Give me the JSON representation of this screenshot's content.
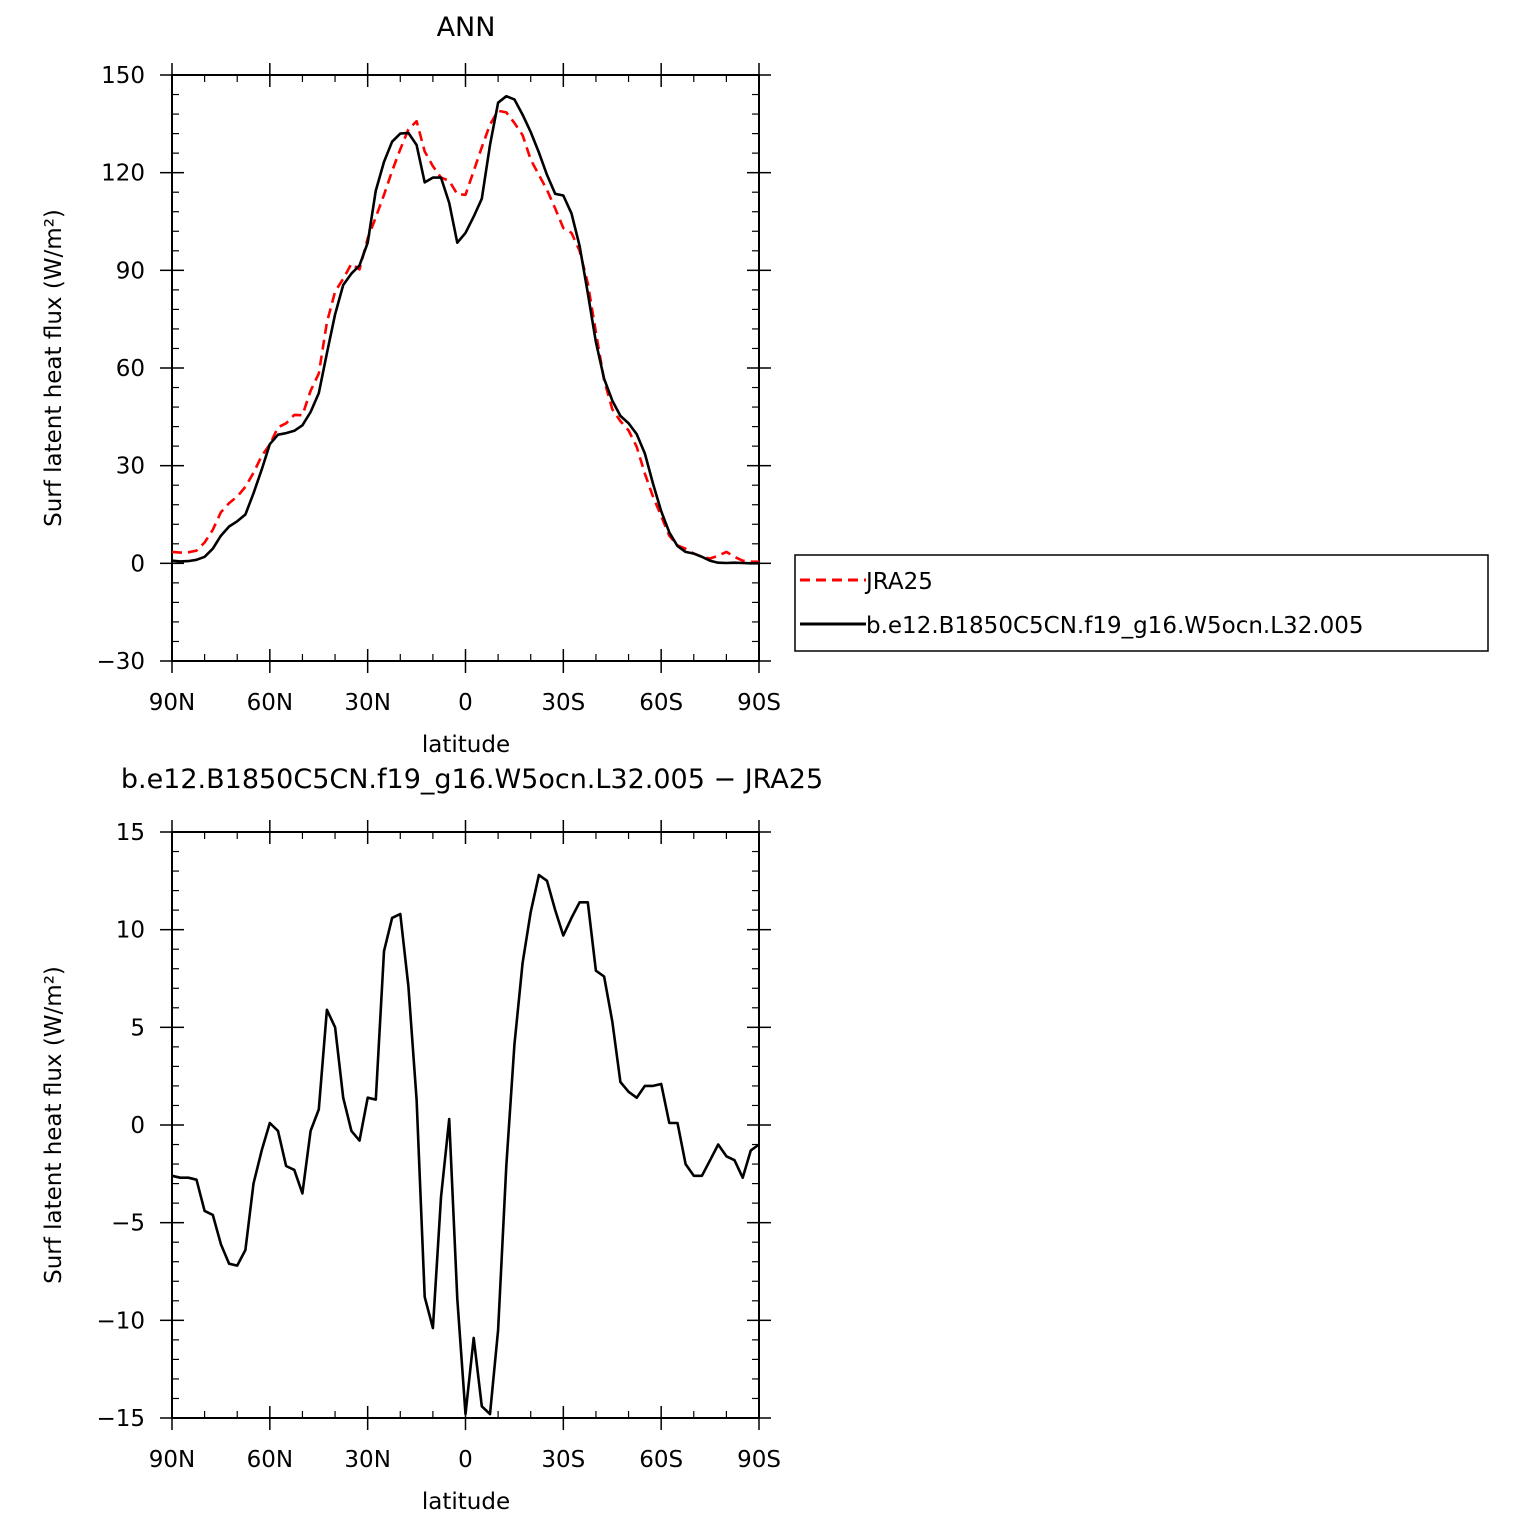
{
  "chart_data": [
    {
      "type": "line",
      "title": "ANN",
      "xlabel": "latitude",
      "ylabel": "Surf latent heat flux (W/m²)",
      "xlim": [
        90,
        -90
      ],
      "ylim": [
        -30,
        150
      ],
      "xtick_values": [
        90,
        60,
        30,
        0,
        -30,
        -60,
        -90
      ],
      "xtick_labels": [
        "90N",
        "60N",
        "30N",
        "0",
        "30S",
        "60S",
        "90S"
      ],
      "ytick_values": [
        -30,
        0,
        30,
        60,
        90,
        120,
        150
      ],
      "ytick_labels": [
        "−30",
        "0",
        "30",
        "60",
        "90",
        "120",
        "150"
      ],
      "legend_position": "right",
      "grid": false,
      "series": [
        {
          "name": "JRA25",
          "color": "#ff0000",
          "style": "dashed",
          "x": [
            90,
            87.5,
            85,
            82.5,
            80,
            77.5,
            75,
            72.5,
            70,
            67.5,
            65,
            62.5,
            60,
            57.5,
            55,
            52.5,
            50,
            47.5,
            45,
            42.5,
            40,
            37.5,
            35,
            32.5,
            30,
            27.5,
            25,
            22.5,
            20,
            17.5,
            15,
            12.5,
            10,
            7.5,
            5,
            2.5,
            0,
            -2.5,
            -5,
            -7.5,
            -10,
            -12.5,
            -15,
            -17.5,
            -20,
            -22.5,
            -25,
            -27.5,
            -30,
            -32.5,
            -35,
            -37.5,
            -40,
            -42.5,
            -45,
            -47.5,
            -50,
            -52.5,
            -55,
            -57.5,
            -60,
            -62.5,
            -65,
            -67.5,
            -70,
            -72.5,
            -75,
            -77.5,
            -80,
            -82.5,
            -85,
            -87.5,
            -90
          ],
          "y": [
            3.5,
            3.3,
            3.4,
            3.9,
            6.4,
            10.3,
            15.7,
            18.5,
            20.5,
            23.5,
            27.8,
            33,
            36.5,
            41.8,
            43,
            45.6,
            45.5,
            53,
            58.3,
            74,
            83.5,
            87.4,
            92,
            90.3,
            99.8,
            106.3,
            113.2,
            120.5,
            127.2,
            133.3,
            135.8,
            126.5,
            122,
            118.5,
            117.5,
            113.4,
            113.2,
            120.5,
            127.8,
            134.8,
            139,
            138.5,
            135.3,
            131.5,
            124,
            119.3,
            114.7,
            109,
            103,
            101.5,
            96,
            86,
            71,
            56.3,
            47.3,
            43.7,
            40.8,
            35.8,
            27.5,
            20.5,
            14.5,
            8.5,
            5.5,
            4.5,
            3,
            2,
            1.5,
            2.3,
            3.5,
            2,
            0.8,
            0.5,
            0.5
          ]
        },
        {
          "name": "b.e12.B1850C5CN.f19_g16.W5ocn.L32.005",
          "color": "#000000",
          "style": "solid",
          "x": [
            90,
            87.5,
            85,
            82.5,
            80,
            77.5,
            75,
            72.5,
            70,
            67.5,
            65,
            62.5,
            60,
            57.5,
            55,
            52.5,
            50,
            47.5,
            45,
            42.5,
            40,
            37.5,
            35,
            32.5,
            30,
            27.5,
            25,
            22.5,
            20,
            17.5,
            15,
            12.5,
            10,
            7.5,
            5,
            2.5,
            0,
            -2.5,
            -5,
            -7.5,
            -10,
            -12.5,
            -15,
            -17.5,
            -20,
            -22.5,
            -25,
            -27.5,
            -30,
            -32.5,
            -35,
            -37.5,
            -40,
            -42.5,
            -45,
            -47.5,
            -50,
            -52.5,
            -55,
            -57.5,
            -60,
            -62.5,
            -65,
            -67.5,
            -70,
            -72.5,
            -75,
            -77.5,
            -80,
            -82.5,
            -85,
            -87.5,
            -90
          ],
          "y": [
            0.8,
            0.6,
            0.7,
            1.1,
            2,
            4.5,
            8.5,
            11.3,
            12.9,
            15,
            21.5,
            28.8,
            36.6,
            39.5,
            40,
            40.7,
            42.4,
            46.5,
            52.3,
            64.5,
            76.5,
            85.5,
            89,
            91.5,
            98.5,
            114.5,
            123.3,
            129.5,
            132,
            132.2,
            128.5,
            117,
            118.5,
            118.5,
            110.7,
            98.5,
            101.5,
            106.5,
            112,
            128.5,
            141.5,
            143.5,
            142.5,
            137.8,
            132.5,
            126.2,
            119.3,
            113.5,
            113,
            107.5,
            97.5,
            83,
            68,
            56.7,
            50,
            45.3,
            43,
            39.7,
            33.7,
            24.5,
            16,
            9.5,
            5.3,
            3.5,
            3,
            2,
            0.8,
            0.2,
            0.1,
            0.2,
            0.1,
            0,
            0
          ]
        }
      ]
    },
    {
      "type": "line",
      "title": "b.e12.B1850C5CN.f19_g16.W5ocn.L32.005 − JRA25",
      "xlabel": "latitude",
      "ylabel": "Surf latent heat flux (W/m²)",
      "xlim": [
        90,
        -90
      ],
      "ylim": [
        -15,
        15
      ],
      "xtick_values": [
        90,
        60,
        30,
        0,
        -30,
        -60,
        -90
      ],
      "xtick_labels": [
        "90N",
        "60N",
        "30N",
        "0",
        "30S",
        "60S",
        "90S"
      ],
      "ytick_values": [
        -15,
        -10,
        -5,
        0,
        5,
        10,
        15
      ],
      "ytick_labels": [
        "−15",
        "−10",
        "−5",
        "0",
        "5",
        "10",
        "15"
      ],
      "grid": false,
      "series": [
        {
          "color": "#000000",
          "style": "solid",
          "x": [
            90,
            87.5,
            85,
            82.5,
            80,
            77.5,
            75,
            72.5,
            70,
            67.5,
            65,
            62.5,
            60,
            57.5,
            55,
            52.5,
            50,
            47.5,
            45,
            42.5,
            40,
            37.5,
            35,
            32.5,
            30,
            27.5,
            25,
            22.5,
            20,
            17.5,
            15,
            12.5,
            10,
            7.5,
            5,
            2.5,
            0,
            -2.5,
            -5,
            -7.5,
            -10,
            -12.5,
            -15,
            -17.5,
            -20,
            -22.5,
            -25,
            -27.5,
            -30,
            -32.5,
            -35,
            -37.5,
            -40,
            -42.5,
            -45,
            -47.5,
            -50,
            -52.5,
            -55,
            -57.5,
            -60,
            -62.5,
            -65,
            -67.5,
            -70,
            -72.5,
            -75,
            -77.5,
            -80,
            -82.5,
            -85,
            -87.5,
            -90
          ],
          "y": [
            -2.6,
            -2.7,
            -2.7,
            -2.8,
            -4.4,
            -4.6,
            -6.1,
            -7.1,
            -7.2,
            -6.4,
            -3,
            -1.3,
            0.1,
            -0.3,
            -2.1,
            -2.3,
            -3.5,
            -0.3,
            0.8,
            5.9,
            5,
            1.4,
            -0.3,
            -0.8,
            1.4,
            1.3,
            8.9,
            10.6,
            10.8,
            7.1,
            1.3,
            -8.8,
            -10.4,
            -3.7,
            0.3,
            -8.9,
            -14.8,
            -10.9,
            -14.4,
            -14.8,
            -10.5,
            -2.1,
            4.1,
            8.3,
            10.9,
            12.8,
            12.5,
            11,
            9.7,
            10.6,
            11.4,
            11.4,
            7.9,
            7.6,
            5.3,
            2.2,
            1.7,
            1.4,
            2,
            2,
            2.1,
            0.1,
            0.1,
            -2,
            -2.6,
            -2.6,
            -1.8,
            -1,
            -1.6,
            -1.8,
            -2.7,
            -1.3,
            -1
          ]
        }
      ]
    }
  ]
}
